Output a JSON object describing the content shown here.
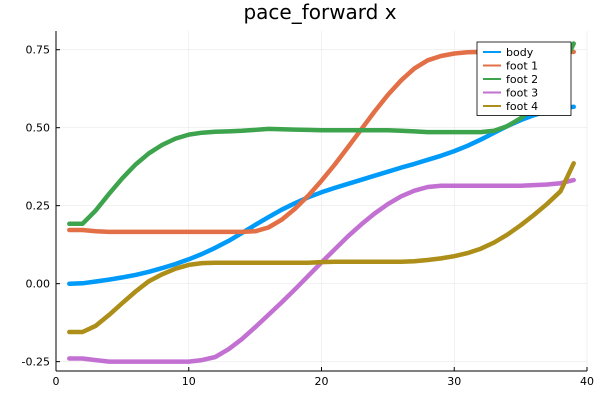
{
  "chart_data": {
    "type": "line",
    "title": "pace_forward x",
    "xlabel": "",
    "ylabel": "",
    "xlim": [
      0,
      40
    ],
    "ylim": [
      -0.28,
      0.81
    ],
    "x_ticks": [
      0,
      10,
      20,
      30,
      40
    ],
    "x_tick_labels": [
      "0",
      "10",
      "20",
      "30",
      "40"
    ],
    "y_ticks": [
      -0.25,
      0,
      0.25,
      0.5,
      0.75
    ],
    "y_tick_labels": [
      "-0.25",
      "0.00",
      "0.25",
      "0.50",
      "0.75"
    ],
    "grid": true,
    "legend_position": "top-right",
    "x": [
      1,
      2,
      3,
      4,
      5,
      6,
      7,
      8,
      9,
      10,
      11,
      12,
      13,
      14,
      15,
      16,
      17,
      18,
      19,
      20,
      21,
      22,
      23,
      24,
      25,
      26,
      27,
      28,
      29,
      30,
      31,
      32,
      33,
      34,
      35,
      36,
      37,
      38,
      39
    ],
    "series": [
      {
        "name": "body",
        "color": "#009af9",
        "values": [
          0.0,
          0.001,
          0.007,
          0.013,
          0.02,
          0.028,
          0.038,
          0.05,
          0.063,
          0.078,
          0.095,
          0.115,
          0.137,
          0.162,
          0.188,
          0.213,
          0.237,
          0.258,
          0.277,
          0.293,
          0.307,
          0.32,
          0.333,
          0.346,
          0.359,
          0.372,
          0.384,
          0.397,
          0.41,
          0.425,
          0.442,
          0.462,
          0.484,
          0.505,
          0.524,
          0.54,
          0.553,
          0.562,
          0.567
        ]
      },
      {
        "name": "foot 1",
        "color": "#e26f46",
        "values": [
          0.172,
          0.172,
          0.168,
          0.166,
          0.166,
          0.166,
          0.166,
          0.166,
          0.166,
          0.166,
          0.166,
          0.166,
          0.166,
          0.166,
          0.168,
          0.18,
          0.205,
          0.24,
          0.282,
          0.33,
          0.382,
          0.438,
          0.495,
          0.552,
          0.605,
          0.652,
          0.69,
          0.716,
          0.73,
          0.738,
          0.742,
          0.743,
          0.743,
          0.743,
          0.743,
          0.743,
          0.743,
          0.743,
          0.743
        ]
      },
      {
        "name": "foot 2",
        "color": "#3da44d",
        "values": [
          0.192,
          0.192,
          0.235,
          0.288,
          0.338,
          0.382,
          0.418,
          0.445,
          0.465,
          0.478,
          0.484,
          0.487,
          0.488,
          0.49,
          0.493,
          0.496,
          0.495,
          0.494,
          0.493,
          0.492,
          0.492,
          0.492,
          0.492,
          0.492,
          0.492,
          0.49,
          0.488,
          0.486,
          0.486,
          0.486,
          0.486,
          0.486,
          0.49,
          0.505,
          0.53,
          0.565,
          0.612,
          0.68,
          0.77
        ]
      },
      {
        "name": "foot 3",
        "color": "#c271d2",
        "values": [
          -0.24,
          -0.24,
          -0.245,
          -0.25,
          -0.25,
          -0.25,
          -0.25,
          -0.25,
          -0.25,
          -0.25,
          -0.245,
          -0.235,
          -0.21,
          -0.178,
          -0.14,
          -0.1,
          -0.06,
          -0.018,
          0.025,
          0.068,
          0.11,
          0.152,
          0.19,
          0.225,
          0.255,
          0.28,
          0.298,
          0.31,
          0.314,
          0.314,
          0.314,
          0.314,
          0.314,
          0.314,
          0.314,
          0.316,
          0.318,
          0.322,
          0.332
        ]
      },
      {
        "name": "foot 4",
        "color": "#ac8e18",
        "values": [
          -0.155,
          -0.155,
          -0.135,
          -0.1,
          -0.062,
          -0.025,
          0.008,
          0.03,
          0.048,
          0.06,
          0.066,
          0.067,
          0.067,
          0.067,
          0.067,
          0.067,
          0.067,
          0.067,
          0.067,
          0.069,
          0.07,
          0.07,
          0.07,
          0.07,
          0.07,
          0.07,
          0.072,
          0.076,
          0.081,
          0.088,
          0.098,
          0.112,
          0.132,
          0.157,
          0.187,
          0.22,
          0.256,
          0.296,
          0.386
        ]
      }
    ]
  }
}
